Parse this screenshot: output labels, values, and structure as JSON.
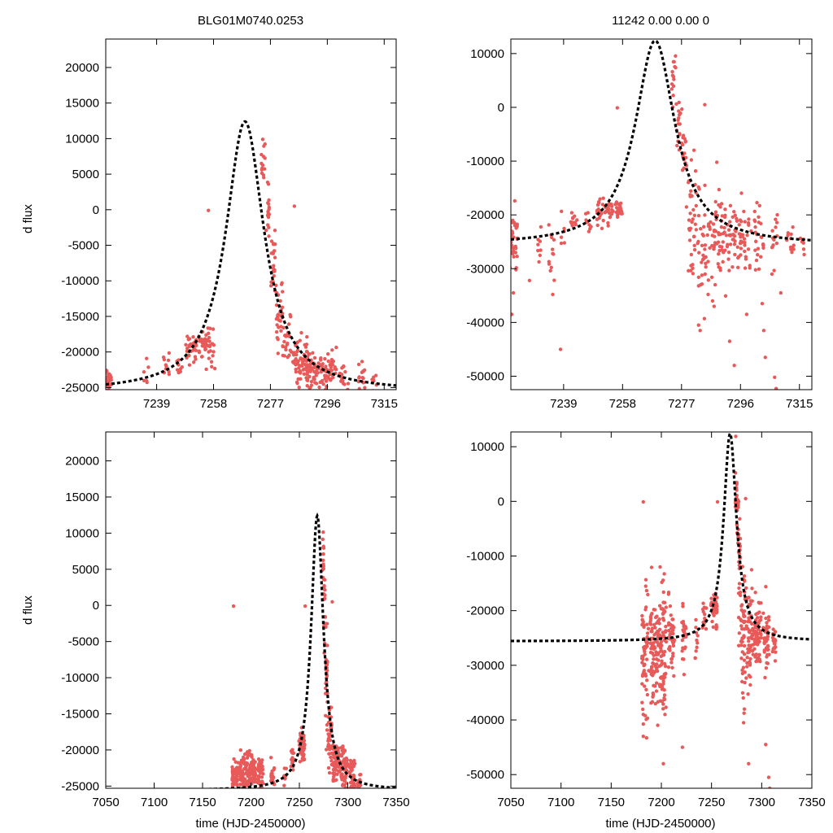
{
  "figure": {
    "title_left": "BLG01M0740.0253",
    "title_right": "11242  0.00  0.00  0",
    "ylabel": "d flux",
    "xlabel": "time (HJD-2450000)"
  },
  "colors": {
    "data": "#e85a5a",
    "model": "#000000",
    "axes": "#000000",
    "background": "#ffffff"
  },
  "chart_data": [
    {
      "id": "top-left",
      "type": "scatter",
      "title": "BLG01M0740.0253",
      "xlabel": "",
      "ylabel": "d flux",
      "xlim": [
        7222,
        7319
      ],
      "ylim": [
        -25300,
        24000
      ],
      "xticks": [
        7239,
        7258,
        7277,
        7296,
        7315
      ],
      "yticks": [
        -25000,
        -20000,
        -15000,
        -10000,
        -5000,
        0,
        5000,
        10000,
        15000,
        20000
      ],
      "model": {
        "name": "model fit",
        "t0": 7268.5,
        "peak": 12400,
        "base": -25600,
        "tau": 7.8
      },
      "clusters": [
        {
          "t": 7222.5,
          "dt": 1.6,
          "center": -23900,
          "sd": 900,
          "n": 50
        },
        {
          "t": 7235.5,
          "dt": 1.0,
          "center": -23300,
          "sd": 800,
          "n": 6
        },
        {
          "t": 7242.5,
          "dt": 1.2,
          "center": -21700,
          "sd": 900,
          "n": 10
        },
        {
          "t": 7246.5,
          "dt": 1.0,
          "center": -22200,
          "sd": 800,
          "n": 8
        },
        {
          "t": 7250.5,
          "dt": 2.0,
          "center": -19500,
          "sd": 1000,
          "n": 30
        },
        {
          "t": 7254.5,
          "dt": 2.5,
          "center": -18800,
          "sd": 900,
          "n": 45
        },
        {
          "t": 7257.5,
          "dt": 1.0,
          "center": -19800,
          "sd": 1300,
          "n": 10
        },
        {
          "t": 7274.5,
          "dt": 0.7,
          "center": 6500,
          "sd": 1700,
          "n": 14
        },
        {
          "t": 7276.0,
          "dt": 0.7,
          "center": 500,
          "sd": 2200,
          "n": 16
        },
        {
          "t": 7277.8,
          "dt": 0.8,
          "center": -7000,
          "sd": 2800,
          "n": 20
        },
        {
          "t": 7280.0,
          "dt": 1.2,
          "center": -14500,
          "sd": 2800,
          "n": 30
        },
        {
          "t": 7282.5,
          "dt": 1.4,
          "center": -17500,
          "sd": 2000,
          "n": 25
        },
        {
          "t": 7287.0,
          "dt": 2.5,
          "center": -21500,
          "sd": 1500,
          "n": 60
        },
        {
          "t": 7291.5,
          "dt": 2.5,
          "center": -22500,
          "sd": 1400,
          "n": 60
        },
        {
          "t": 7296.5,
          "dt": 2.5,
          "center": -22500,
          "sd": 1500,
          "n": 50
        },
        {
          "t": 7301.5,
          "dt": 1.6,
          "center": -23800,
          "sd": 1000,
          "n": 20
        },
        {
          "t": 7307.5,
          "dt": 1.2,
          "center": -23700,
          "sd": 1000,
          "n": 15
        },
        {
          "t": 7311.5,
          "dt": 1.0,
          "center": -24200,
          "sd": 600,
          "n": 8
        }
      ],
      "outliers": [
        {
          "t": 7256.3,
          "v": -100
        },
        {
          "t": 7285.0,
          "v": 500
        },
        {
          "t": 7281.0,
          "v": -15000
        },
        {
          "t": 7284.0,
          "v": -20000
        }
      ]
    },
    {
      "id": "top-right",
      "type": "scatter",
      "title": "11242  0.00  0.00  0",
      "xlabel": "",
      "ylabel": "",
      "xlim": [
        7222,
        7319
      ],
      "ylim": [
        -52500,
        12700
      ],
      "xticks": [
        7239,
        7258,
        7277,
        7296,
        7315
      ],
      "yticks": [
        -50000,
        -40000,
        -30000,
        -20000,
        -10000,
        0,
        10000
      ],
      "model": {
        "name": "model fit",
        "t0": 7268.5,
        "peak": 12400,
        "base": -25600,
        "tau": 7.8
      },
      "clusters": [
        {
          "t": 7222.5,
          "dt": 1.6,
          "center": -25000,
          "sd": 3000,
          "n": 45
        },
        {
          "t": 7231.0,
          "dt": 1.0,
          "center": -25500,
          "sd": 2500,
          "n": 8
        },
        {
          "t": 7235.0,
          "dt": 1.0,
          "center": -26500,
          "sd": 3500,
          "n": 12
        },
        {
          "t": 7238.5,
          "dt": 0.8,
          "center": -23500,
          "sd": 1500,
          "n": 6
        },
        {
          "t": 7242.5,
          "dt": 1.2,
          "center": -21000,
          "sd": 1200,
          "n": 12
        },
        {
          "t": 7247.0,
          "dt": 1.0,
          "center": -21000,
          "sd": 1000,
          "n": 8
        },
        {
          "t": 7251.5,
          "dt": 2.0,
          "center": -19500,
          "sd": 1200,
          "n": 30
        },
        {
          "t": 7255.5,
          "dt": 2.5,
          "center": -18800,
          "sd": 1000,
          "n": 40
        },
        {
          "t": 7274.5,
          "dt": 0.7,
          "center": 5000,
          "sd": 3000,
          "n": 14
        },
        {
          "t": 7276.0,
          "dt": 0.7,
          "center": -2000,
          "sd": 3500,
          "n": 15
        },
        {
          "t": 7277.8,
          "dt": 0.8,
          "center": -9000,
          "sd": 4500,
          "n": 18
        },
        {
          "t": 7280.5,
          "dt": 1.3,
          "center": -20000,
          "sd": 6000,
          "n": 35
        },
        {
          "t": 7284.0,
          "dt": 1.8,
          "center": -26000,
          "sd": 5500,
          "n": 35
        },
        {
          "t": 7288.0,
          "dt": 2.0,
          "center": -24500,
          "sd": 4500,
          "n": 40
        },
        {
          "t": 7292.0,
          "dt": 2.5,
          "center": -23500,
          "sd": 3000,
          "n": 45
        },
        {
          "t": 7297.0,
          "dt": 2.5,
          "center": -23500,
          "sd": 2500,
          "n": 40
        },
        {
          "t": 7302.0,
          "dt": 1.6,
          "center": -25500,
          "sd": 2500,
          "n": 25
        },
        {
          "t": 7307.0,
          "dt": 1.2,
          "center": -25000,
          "sd": 2000,
          "n": 15
        },
        {
          "t": 7312.0,
          "dt": 1.2,
          "center": -25000,
          "sd": 1500,
          "n": 12
        },
        {
          "t": 7316.0,
          "dt": 0.8,
          "center": -26000,
          "sd": 1000,
          "n": 6
        }
      ],
      "outliers": [
        {
          "t": 7222.3,
          "v": -38500
        },
        {
          "t": 7222.8,
          "v": -34500
        },
        {
          "t": 7228.0,
          "v": -32200
        },
        {
          "t": 7235.5,
          "v": -34800
        },
        {
          "t": 7238.0,
          "v": -45000
        },
        {
          "t": 7256.3,
          "v": -100
        },
        {
          "t": 7284.5,
          "v": 500
        },
        {
          "t": 7282.5,
          "v": -40500
        },
        {
          "t": 7283.0,
          "v": -41500
        },
        {
          "t": 7287.0,
          "v": -36000
        },
        {
          "t": 7287.5,
          "v": -37000
        },
        {
          "t": 7292.5,
          "v": -43500
        },
        {
          "t": 7294.0,
          "v": -48000
        },
        {
          "t": 7298.0,
          "v": -38500
        },
        {
          "t": 7303.0,
          "v": -36500
        },
        {
          "t": 7303.5,
          "v": -41500
        },
        {
          "t": 7304.0,
          "v": -46500
        },
        {
          "t": 7307.0,
          "v": -50200
        },
        {
          "t": 7307.5,
          "v": -52300
        },
        {
          "t": 7309.0,
          "v": -34500
        }
      ]
    },
    {
      "id": "bottom-left",
      "type": "scatter",
      "title": "",
      "xlabel": "time (HJD-2450000)",
      "ylabel": "d flux",
      "xlim": [
        7050,
        7350
      ],
      "ylim": [
        -25300,
        24000
      ],
      "xticks": [
        7050,
        7100,
        7150,
        7200,
        7250,
        7300,
        7350
      ],
      "yticks": [
        -25000,
        -20000,
        -15000,
        -10000,
        -5000,
        0,
        5000,
        10000,
        15000,
        20000
      ],
      "model": {
        "name": "model fit",
        "t0": 7268.5,
        "peak": 12400,
        "base": -25600,
        "tau": 7.8
      },
      "clusters": [
        {
          "t": 7184.0,
          "dt": 3.5,
          "center": -23500,
          "sd": 1200,
          "n": 50
        },
        {
          "t": 7193.0,
          "dt": 4.5,
          "center": -23200,
          "sd": 1300,
          "n": 80
        },
        {
          "t": 7201.5,
          "dt": 3.5,
          "center": -23000,
          "sd": 1300,
          "n": 70
        },
        {
          "t": 7210.0,
          "dt": 3.0,
          "center": -23300,
          "sd": 1200,
          "n": 40
        },
        {
          "t": 7222.5,
          "dt": 2.0,
          "center": -23800,
          "sd": 800,
          "n": 25
        },
        {
          "t": 7235.0,
          "dt": 1.5,
          "center": -23500,
          "sd": 900,
          "n": 8
        },
        {
          "t": 7243.0,
          "dt": 2.0,
          "center": -21500,
          "sd": 1000,
          "n": 15
        },
        {
          "t": 7252.5,
          "dt": 3.0,
          "center": -19500,
          "sd": 1200,
          "n": 50
        },
        {
          "t": 7274.5,
          "dt": 0.8,
          "center": 6000,
          "sd": 1800,
          "n": 14
        },
        {
          "t": 7276.0,
          "dt": 0.8,
          "center": 0,
          "sd": 2500,
          "n": 14
        },
        {
          "t": 7278.0,
          "dt": 1.0,
          "center": -9000,
          "sd": 3500,
          "n": 25
        },
        {
          "t": 7281.5,
          "dt": 2.0,
          "center": -17500,
          "sd": 2500,
          "n": 40
        },
        {
          "t": 7288.0,
          "dt": 3.5,
          "center": -21800,
          "sd": 1500,
          "n": 60
        },
        {
          "t": 7296.0,
          "dt": 3.5,
          "center": -22500,
          "sd": 1500,
          "n": 60
        },
        {
          "t": 7304.5,
          "dt": 3.0,
          "center": -23500,
          "sd": 1200,
          "n": 40
        },
        {
          "t": 7312.0,
          "dt": 2.0,
          "center": -24200,
          "sd": 800,
          "n": 15
        }
      ],
      "outliers": [
        {
          "t": 7182.0,
          "v": -100
        },
        {
          "t": 7256.0,
          "v": -100
        },
        {
          "t": 7284.0,
          "v": 500
        }
      ]
    },
    {
      "id": "bottom-right",
      "type": "scatter",
      "title": "",
      "xlabel": "time (HJD-2450000)",
      "ylabel": "",
      "xlim": [
        7050,
        7350
      ],
      "ylim": [
        -52500,
        12700
      ],
      "xticks": [
        7050,
        7100,
        7150,
        7200,
        7250,
        7300,
        7350
      ],
      "yticks": [
        -50000,
        -40000,
        -30000,
        -20000,
        -10000,
        0,
        10000
      ],
      "model": {
        "name": "model fit",
        "t0": 7268.5,
        "peak": 12400,
        "base": -25600,
        "tau": 7.8
      },
      "clusters": [
        {
          "t": 7184.0,
          "dt": 3.5,
          "center": -28000,
          "sd": 5500,
          "n": 60
        },
        {
          "t": 7193.0,
          "dt": 4.5,
          "center": -26500,
          "sd": 4500,
          "n": 90
        },
        {
          "t": 7201.5,
          "dt": 3.5,
          "center": -27500,
          "sd": 6000,
          "n": 80
        },
        {
          "t": 7210.0,
          "dt": 3.0,
          "center": -25000,
          "sd": 3500,
          "n": 45
        },
        {
          "t": 7222.5,
          "dt": 2.0,
          "center": -25000,
          "sd": 2500,
          "n": 25
        },
        {
          "t": 7235.0,
          "dt": 1.5,
          "center": -25500,
          "sd": 2500,
          "n": 10
        },
        {
          "t": 7243.0,
          "dt": 2.0,
          "center": -21500,
          "sd": 1500,
          "n": 15
        },
        {
          "t": 7252.5,
          "dt": 3.0,
          "center": -19500,
          "sd": 1500,
          "n": 45
        },
        {
          "t": 7274.5,
          "dt": 0.8,
          "center": 4000,
          "sd": 3000,
          "n": 14
        },
        {
          "t": 7276.0,
          "dt": 0.8,
          "center": -3000,
          "sd": 3500,
          "n": 14
        },
        {
          "t": 7278.0,
          "dt": 1.0,
          "center": -12000,
          "sd": 5000,
          "n": 25
        },
        {
          "t": 7281.5,
          "dt": 2.0,
          "center": -24000,
          "sd": 6500,
          "n": 45
        },
        {
          "t": 7288.0,
          "dt": 3.5,
          "center": -24500,
          "sd": 5000,
          "n": 60
        },
        {
          "t": 7296.0,
          "dt": 3.5,
          "center": -24000,
          "sd": 3500,
          "n": 60
        },
        {
          "t": 7304.5,
          "dt": 3.0,
          "center": -25000,
          "sd": 2500,
          "n": 40
        },
        {
          "t": 7312.0,
          "dt": 2.0,
          "center": -25500,
          "sd": 1500,
          "n": 20
        }
      ],
      "outliers": [
        {
          "t": 7182.0,
          "v": -100
        },
        {
          "t": 7256.0,
          "v": -100
        },
        {
          "t": 7284.0,
          "v": 500
        },
        {
          "t": 7182.0,
          "v": -43000
        },
        {
          "t": 7202.0,
          "v": -48000
        },
        {
          "t": 7203.0,
          "v": -52800
        },
        {
          "t": 7221.0,
          "v": -45000
        },
        {
          "t": 7282.0,
          "v": -40500
        },
        {
          "t": 7287.0,
          "v": -48000
        },
        {
          "t": 7307.0,
          "v": -50500
        },
        {
          "t": 7308.0,
          "v": -52500
        },
        {
          "t": 7304.0,
          "v": -44500
        }
      ]
    }
  ]
}
